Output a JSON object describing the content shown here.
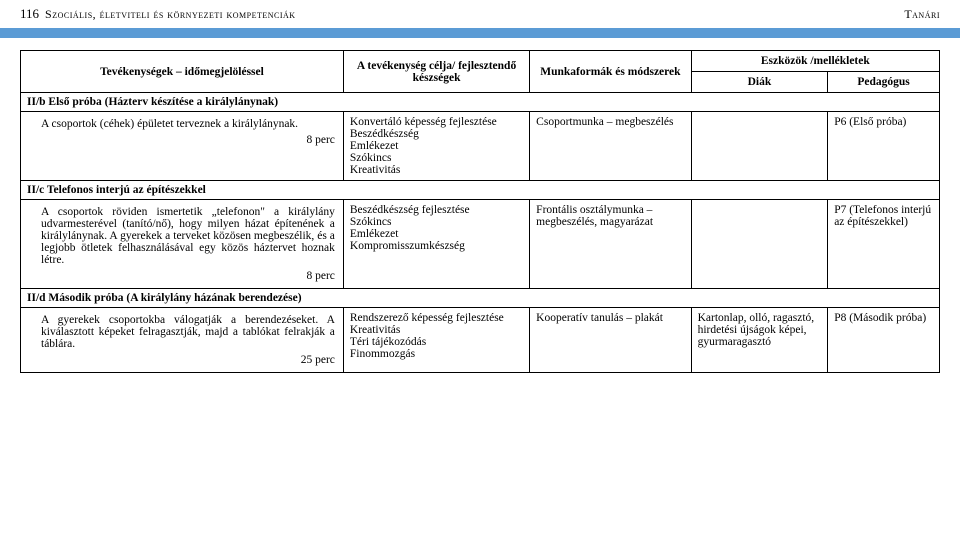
{
  "header": {
    "page_number": "116",
    "title_left": "Szociális, életviteli és környezeti kompetenciák",
    "title_right": "Tanári"
  },
  "table": {
    "head": {
      "activities": "Tevékenységek – időmegjelöléssel",
      "goal": "A tevékenység célja/ fejlesztendő készségek",
      "methods": "Munkaformák és módszerek",
      "tools": "Eszközök /mellékletek",
      "student": "Diák",
      "teacher": "Pedagógus"
    },
    "sections": [
      {
        "label": "II/b Első próba (Házterv készítése a királylánynak)",
        "row": {
          "activity": "A csoportok (céhek) épületet terveznek a királylánynak.",
          "time": "8 perc",
          "goal": "Konvertáló képesség fejlesztése\nBeszédkészség\nEmlékezet\nSzókincs\nKreativitás",
          "methods": "Csoportmunka – megbeszélés",
          "student": "",
          "teacher": "P6 (Első próba)"
        }
      },
      {
        "label": "II/c Telefonos interjú az építészekkel",
        "row": {
          "activity": "A csoportok röviden ismertetik „telefonon\" a királylány udvarmesterével (tanító/nő), hogy milyen házat építenének a királylánynak. A gyerekek a terveket közösen megbeszélik, és a legjobb ötletek felhasználásával egy közös háztervet hoznak létre.",
          "time": "8 perc",
          "goal": "Beszédkészség fejlesztése\nSzókincs\nEmlékezet\nKompromisszumkészség",
          "methods": "Frontális osztálymunka – megbeszélés, magyarázat",
          "student": "",
          "teacher": "P7 (Telefonos interjú az építészekkel)"
        }
      },
      {
        "label": "II/d Második próba (A királylány házának berendezése)",
        "row": {
          "activity": "A gyerekek csoportokba válogatják a berendezéseket. A kiválasztott képeket felragasztják, majd a tablókat felrakják a táblára.",
          "time": "25 perc",
          "goal": "Rendszerező képesség fejlesztése\nKreativitás\nTéri tájékozódás\nFinommozgás",
          "methods": "Kooperatív tanulás – plakát",
          "student": "Kartonlap, olló, ragasztó, hirdetési újságok képei, gyurmaragasztó",
          "teacher": "P8 (Második próba)"
        }
      }
    ]
  }
}
